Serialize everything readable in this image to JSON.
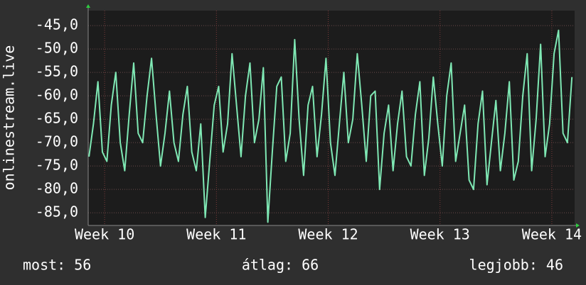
{
  "chart_data": {
    "type": "line",
    "y_label": "onlinestream.live",
    "x": [
      9.86,
      9.9,
      9.94,
      9.98,
      10.02,
      10.06,
      10.1,
      10.14,
      10.18,
      10.22,
      10.26,
      10.3,
      10.34,
      10.38,
      10.42,
      10.46,
      10.5,
      10.54,
      10.58,
      10.62,
      10.66,
      10.7,
      10.74,
      10.78,
      10.82,
      10.86,
      10.9,
      10.94,
      10.98,
      11.02,
      11.06,
      11.1,
      11.14,
      11.18,
      11.22,
      11.26,
      11.3,
      11.34,
      11.38,
      11.42,
      11.46,
      11.5,
      11.54,
      11.58,
      11.62,
      11.66,
      11.7,
      11.74,
      11.78,
      11.82,
      11.86,
      11.9,
      11.94,
      11.98,
      12.02,
      12.06,
      12.1,
      12.14,
      12.18,
      12.22,
      12.26,
      12.3,
      12.34,
      12.38,
      12.42,
      12.46,
      12.5,
      12.54,
      12.58,
      12.62,
      12.66,
      12.7,
      12.74,
      12.78,
      12.82,
      12.86,
      12.9,
      12.94,
      12.98,
      13.02,
      13.06,
      13.1,
      13.14,
      13.18,
      13.22,
      13.26,
      13.3,
      13.34,
      13.38,
      13.42,
      13.46,
      13.5,
      13.54,
      13.58,
      13.62,
      13.66,
      13.7,
      13.74,
      13.78,
      13.82,
      13.86,
      13.9,
      13.94,
      13.98,
      14.02,
      14.06,
      14.1,
      14.14,
      14.18
    ],
    "series": [
      {
        "color": "#7fe8b4",
        "values": [
          -73,
          -66,
          -57,
          -72,
          -74,
          -62,
          -55,
          -70,
          -76,
          -64,
          -53,
          -68,
          -70,
          -60,
          -52,
          -64,
          -75,
          -68,
          -59,
          -70,
          -74,
          -64,
          -58,
          -72,
          -76,
          -66,
          -86,
          -74,
          -62,
          -58,
          -72,
          -66,
          -51,
          -62,
          -73,
          -60,
          -53,
          -70,
          -65,
          -54,
          -87,
          -72,
          -58,
          -56,
          -74,
          -68,
          -48,
          -65,
          -77,
          -62,
          -58,
          -73,
          -64,
          -52,
          -70,
          -77,
          -66,
          -55,
          -70,
          -65,
          -51,
          -62,
          -74,
          -60,
          -59,
          -80,
          -68,
          -62,
          -76,
          -66,
          -59,
          -73,
          -75,
          -64,
          -57,
          -77,
          -69,
          -56,
          -66,
          -75,
          -60,
          -53,
          -74,
          -68,
          -62,
          -78,
          -80,
          -66,
          -59,
          -79,
          -70,
          -61,
          -76,
          -68,
          -57,
          -78,
          -74,
          -60,
          -51,
          -76,
          -65,
          -49,
          -73,
          -66,
          -51,
          -46,
          -68,
          -70,
          -56
        ]
      }
    ],
    "xlim": [
      9.853,
      14.204
    ],
    "xticks": [
      {
        "value": 10,
        "label": "Week 10"
      },
      {
        "value": 11,
        "label": "Week 11"
      },
      {
        "value": 12,
        "label": "Week 12"
      },
      {
        "value": 13,
        "label": "Week 13"
      },
      {
        "value": 14,
        "label": "Week 14"
      }
    ],
    "ylim": [
      -87.7,
      -41.8
    ],
    "yticks": [
      {
        "value": -85,
        "label": "-85,0"
      },
      {
        "value": -80,
        "label": "-80,0"
      },
      {
        "value": -75,
        "label": "-75,0"
      },
      {
        "value": -70,
        "label": "-70,0"
      },
      {
        "value": -65,
        "label": "-65,0"
      },
      {
        "value": -60,
        "label": "-60,0"
      },
      {
        "value": -55,
        "label": "-55,0"
      },
      {
        "value": -50,
        "label": "-50,0"
      },
      {
        "value": -45,
        "label": "-45,0"
      }
    ],
    "grid": true,
    "footer": [
      "most: 56",
      "átlag: 66",
      "legjobb: 46"
    ]
  }
}
